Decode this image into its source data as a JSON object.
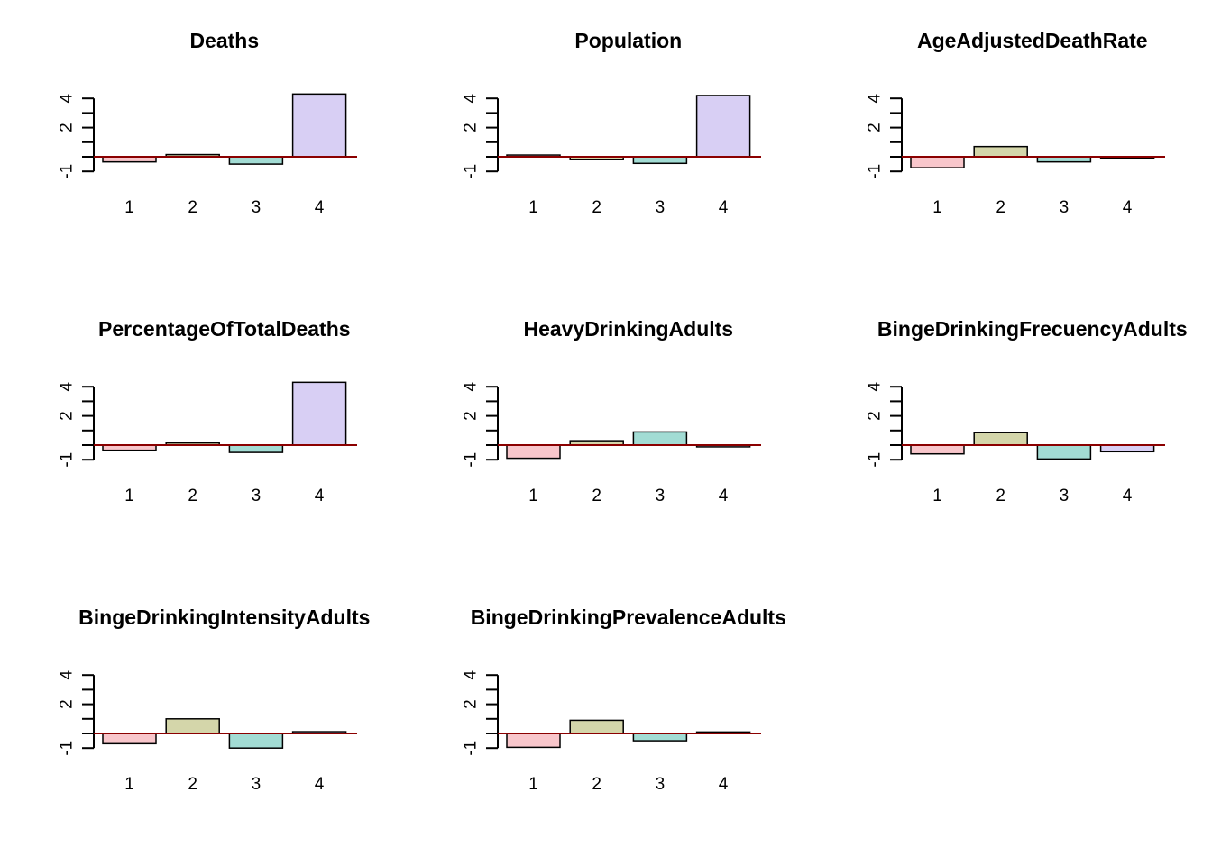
{
  "chart_data": [
    {
      "type": "bar",
      "title": "Deaths",
      "categories": [
        "1",
        "2",
        "3",
        "4"
      ],
      "values": [
        -0.35,
        0.15,
        -0.5,
        4.3
      ],
      "yticks": [
        -1,
        0,
        1,
        2,
        3,
        4
      ],
      "ytick_labels": [
        "-1",
        "",
        "",
        "2",
        "",
        "4"
      ],
      "ylim": [
        -1,
        4
      ],
      "baseline": 0,
      "bar_colors": [
        "#F8C6CB",
        "#D4D6AA",
        "#A2DCD4",
        "#D8CFF4"
      ],
      "baseline_color": "#8B0000"
    },
    {
      "type": "bar",
      "title": "Population",
      "categories": [
        "1",
        "2",
        "3",
        "4"
      ],
      "values": [
        0.12,
        -0.2,
        -0.45,
        4.2
      ],
      "yticks": [
        -1,
        0,
        1,
        2,
        3,
        4
      ],
      "ytick_labels": [
        "-1",
        "",
        "",
        "2",
        "",
        "4"
      ],
      "ylim": [
        -1,
        4
      ],
      "baseline": 0,
      "bar_colors": [
        "#F8C6CB",
        "#D4D6AA",
        "#A2DCD4",
        "#D8CFF4"
      ],
      "baseline_color": "#8B0000"
    },
    {
      "type": "bar",
      "title": "AgeAdjustedDeathRate",
      "categories": [
        "1",
        "2",
        "3",
        "4"
      ],
      "values": [
        -0.75,
        0.7,
        -0.35,
        -0.1
      ],
      "yticks": [
        -1,
        0,
        1,
        2,
        3,
        4
      ],
      "ytick_labels": [
        "-1",
        "",
        "",
        "2",
        "",
        "4"
      ],
      "ylim": [
        -1,
        4
      ],
      "baseline": 0,
      "bar_colors": [
        "#F8C6CB",
        "#D4D6AA",
        "#A2DCD4",
        "#D8CFF4"
      ],
      "baseline_color": "#8B0000"
    },
    {
      "type": "bar",
      "title": "PercentageOfTotalDeaths",
      "categories": [
        "1",
        "2",
        "3",
        "4"
      ],
      "values": [
        -0.35,
        0.15,
        -0.5,
        4.3
      ],
      "yticks": [
        -1,
        0,
        1,
        2,
        3,
        4
      ],
      "ytick_labels": [
        "-1",
        "",
        "",
        "2",
        "",
        "4"
      ],
      "ylim": [
        -1,
        4
      ],
      "baseline": 0,
      "bar_colors": [
        "#F8C6CB",
        "#D4D6AA",
        "#A2DCD4",
        "#D8CFF4"
      ],
      "baseline_color": "#8B0000"
    },
    {
      "type": "bar",
      "title": "HeavyDrinkingAdults",
      "categories": [
        "1",
        "2",
        "3",
        "4"
      ],
      "values": [
        -0.9,
        0.3,
        0.9,
        -0.12
      ],
      "yticks": [
        -1,
        0,
        1,
        2,
        3,
        4
      ],
      "ytick_labels": [
        "-1",
        "",
        "",
        "2",
        "",
        "4"
      ],
      "ylim": [
        -1,
        4
      ],
      "baseline": 0,
      "bar_colors": [
        "#F8C6CB",
        "#D4D6AA",
        "#A2DCD4",
        "#D8CFF4"
      ],
      "baseline_color": "#8B0000"
    },
    {
      "type": "bar",
      "title": "BingeDrinkingFrecuencyAdults",
      "categories": [
        "1",
        "2",
        "3",
        "4"
      ],
      "values": [
        -0.6,
        0.85,
        -0.95,
        -0.45
      ],
      "yticks": [
        -1,
        0,
        1,
        2,
        3,
        4
      ],
      "ytick_labels": [
        "-1",
        "",
        "",
        "2",
        "",
        "4"
      ],
      "ylim": [
        -1,
        4
      ],
      "baseline": 0,
      "bar_colors": [
        "#F8C6CB",
        "#D4D6AA",
        "#A2DCD4",
        "#D8CFF4"
      ],
      "baseline_color": "#8B0000"
    },
    {
      "type": "bar",
      "title": "BingeDrinkingIntensityAdults",
      "categories": [
        "1",
        "2",
        "3",
        "4"
      ],
      "values": [
        -0.7,
        1.0,
        -1.0,
        0.12
      ],
      "yticks": [
        -1,
        0,
        1,
        2,
        3,
        4
      ],
      "ytick_labels": [
        "-1",
        "",
        "",
        "2",
        "",
        "4"
      ],
      "ylim": [
        -1,
        4
      ],
      "baseline": 0,
      "bar_colors": [
        "#F8C6CB",
        "#D4D6AA",
        "#A2DCD4",
        "#D8CFF4"
      ],
      "baseline_color": "#8B0000"
    },
    {
      "type": "bar",
      "title": "BingeDrinkingPrevalenceAdults",
      "categories": [
        "1",
        "2",
        "3",
        "4"
      ],
      "values": [
        -0.95,
        0.9,
        -0.5,
        0.1
      ],
      "yticks": [
        -1,
        0,
        1,
        2,
        3,
        4
      ],
      "ytick_labels": [
        "-1",
        "",
        "",
        "2",
        "",
        "4"
      ],
      "ylim": [
        -1,
        4
      ],
      "baseline": 0,
      "bar_colors": [
        "#F8C6CB",
        "#D4D6AA",
        "#A2DCD4",
        "#D8CFF4"
      ],
      "baseline_color": "#8B0000"
    }
  ]
}
